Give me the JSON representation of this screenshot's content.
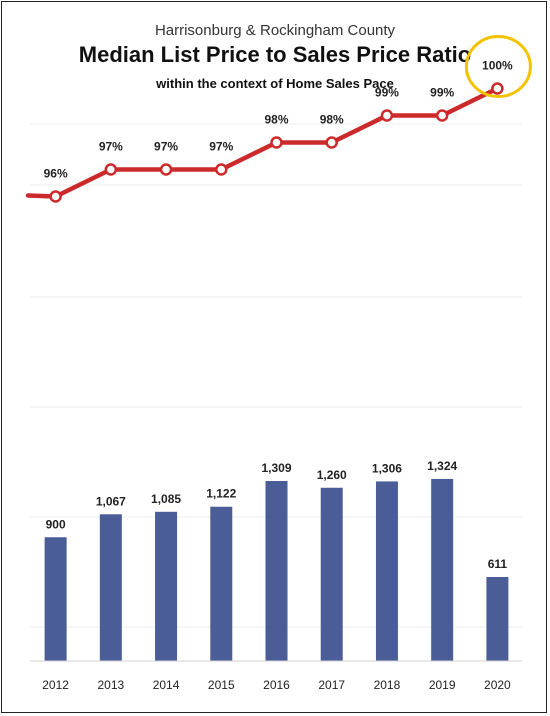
{
  "title_line1": "Harrisonburg & Rockingham County",
  "title_line2": "Median List Price to Sales Price Ratio",
  "title_line3": "within the context of Home Sales Pace",
  "colors": {
    "bar": "#4a5d97",
    "line": "#cc2a2a",
    "highlight": "#f2c200"
  },
  "chart_data": {
    "type": "bar",
    "categories": [
      "2012",
      "2013",
      "2014",
      "2015",
      "2016",
      "2017",
      "2018",
      "2019",
      "2020"
    ],
    "series": [
      {
        "type": "bar",
        "values": [
          900,
          1067,
          1085,
          1122,
          1309,
          1260,
          1306,
          1324,
          611
        ],
        "labels": [
          "900",
          "1,067",
          "1,085",
          "1,122",
          "1,309",
          "1,260",
          "1,306",
          "1,324",
          "611"
        ]
      },
      {
        "type": "line",
        "values": [
          96,
          97,
          97,
          97,
          98,
          98,
          99,
          99,
          100
        ],
        "labels": [
          "96%",
          "97%",
          "97%",
          "97%",
          "98%",
          "98%",
          "99%",
          "99%",
          "100%"
        ]
      }
    ],
    "highlight_category": "2020",
    "grid": true,
    "legend": "none"
  }
}
